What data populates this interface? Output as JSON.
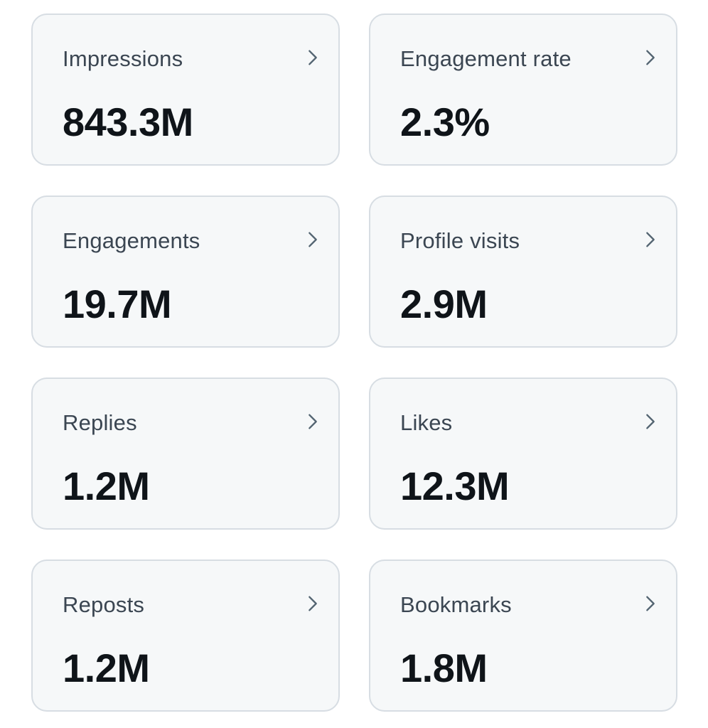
{
  "stats": [
    {
      "label": "Impressions",
      "value": "843.3M",
      "icon": "chevron-right-icon"
    },
    {
      "label": "Engagement rate",
      "value": "2.3%",
      "icon": "chevron-right-icon"
    },
    {
      "label": "Engagements",
      "value": "19.7M",
      "icon": "chevron-right-icon"
    },
    {
      "label": "Profile visits",
      "value": "2.9M",
      "icon": "chevron-right-icon"
    },
    {
      "label": "Replies",
      "value": "1.2M",
      "icon": "chevron-right-icon"
    },
    {
      "label": "Likes",
      "value": "12.3M",
      "icon": "chevron-right-icon"
    },
    {
      "label": "Reposts",
      "value": "1.2M",
      "icon": "chevron-right-icon"
    },
    {
      "label": "Bookmarks",
      "value": "1.8M",
      "icon": "chevron-right-icon"
    }
  ],
  "colors": {
    "card_background": "#f6f8f9",
    "card_border": "#d7dde3",
    "label_text": "#3b4652",
    "value_text": "#0f1419",
    "chevron": "#536471"
  }
}
